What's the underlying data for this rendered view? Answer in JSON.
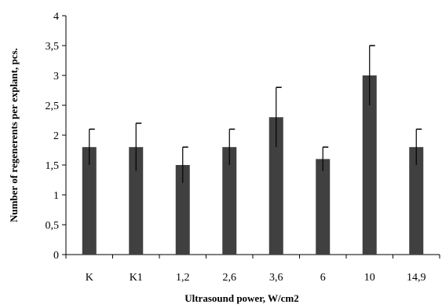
{
  "chart_data": {
    "type": "bar",
    "title": "",
    "xlabel": "Ultrasound power, W/cm2",
    "ylabel": "Number of regenerents per explant, pcs.",
    "categories": [
      "K",
      "K1",
      "1,2",
      "2,6",
      "3,6",
      "6",
      "10",
      "14,9"
    ],
    "values": [
      1.8,
      1.8,
      1.5,
      1.8,
      2.3,
      1.6,
      3.0,
      1.8
    ],
    "error_upper": [
      2.1,
      2.2,
      1.8,
      2.1,
      2.8,
      1.8,
      3.5,
      2.1
    ],
    "error_lower": [
      1.5,
      1.4,
      1.2,
      1.5,
      1.8,
      1.4,
      2.5,
      1.5
    ],
    "ylim": [
      0,
      4
    ],
    "yticks": [
      0,
      0.5,
      1,
      1.5,
      2,
      2.5,
      3,
      3.5,
      4
    ],
    "ytick_labels": [
      "0",
      "0,5",
      "1",
      "1,5",
      "2",
      "2,5",
      "3",
      "3,5",
      "4"
    ],
    "grid": false,
    "legend": "none",
    "bar_color": "#404040"
  }
}
